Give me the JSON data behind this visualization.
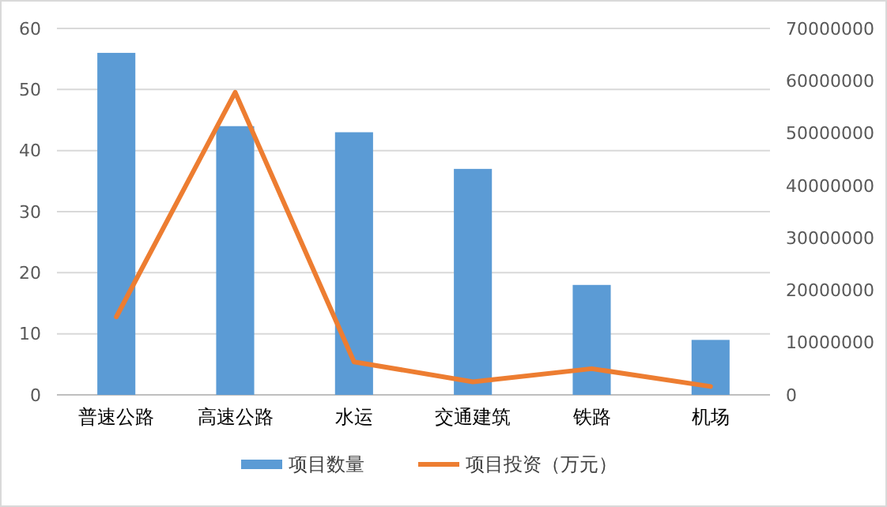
{
  "chart_data": {
    "type": "bar",
    "categories": [
      "普速公路",
      "高速公路",
      "水运",
      "交通建筑",
      "铁路",
      "机场"
    ],
    "series": [
      {
        "name": "项目数量",
        "color": "#5b9bd5",
        "values": [
          56,
          44,
          43,
          37,
          18,
          9
        ]
      },
      {
        "name": "项目投资（万元）",
        "type": "line",
        "axis": "y2",
        "color": "#ed7d31",
        "values": [
          14900000,
          57800000,
          6300000,
          2500000,
          5000000,
          1600000
        ]
      }
    ],
    "ylim": [
      0,
      60
    ],
    "yticks": [
      0,
      10,
      20,
      30,
      40,
      50,
      60
    ],
    "y2lim": [
      0,
      70000000
    ],
    "y2ticks": [
      0,
      10000000,
      20000000,
      30000000,
      40000000,
      50000000,
      60000000,
      70000000
    ],
    "grid": "y",
    "legend": "bottom",
    "marker": "none",
    "line_style": "solid"
  }
}
